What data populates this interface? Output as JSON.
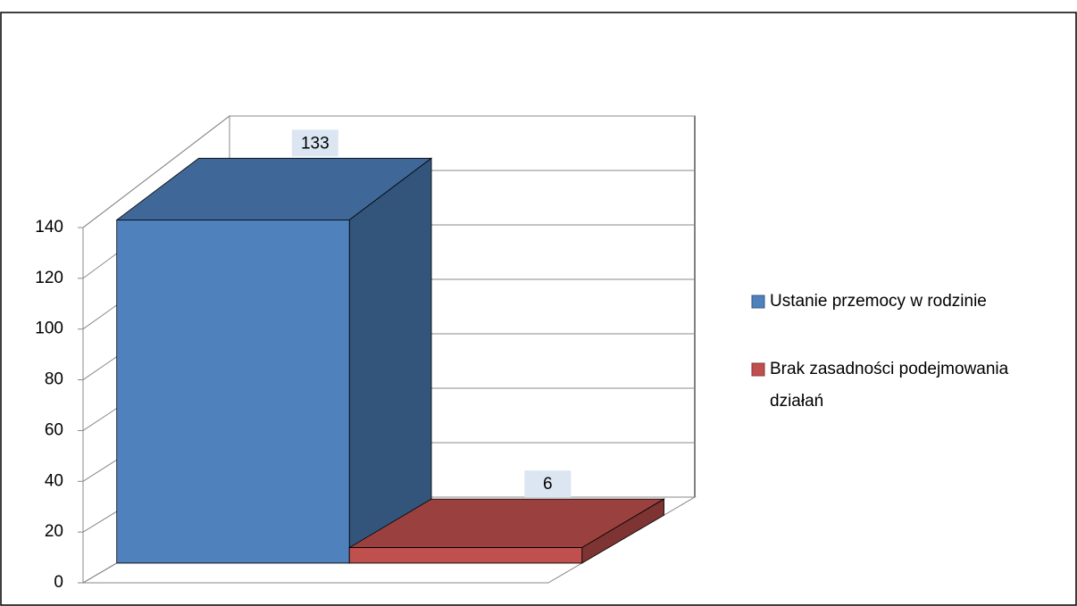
{
  "chart_data": {
    "type": "bar3d",
    "categories": [
      null
    ],
    "series": [
      {
        "name": "Ustanie przemocy w rodzinie",
        "color": "#4f81bd",
        "values": [
          133
        ]
      },
      {
        "name": "Brak zasadności podejmowania działań",
        "color": "#c0504d",
        "values": [
          6
        ]
      }
    ],
    "ylim": [
      0,
      140
    ],
    "yticks": [
      0,
      20,
      40,
      60,
      80,
      100,
      120,
      140
    ],
    "grid": true,
    "legend": "right"
  }
}
